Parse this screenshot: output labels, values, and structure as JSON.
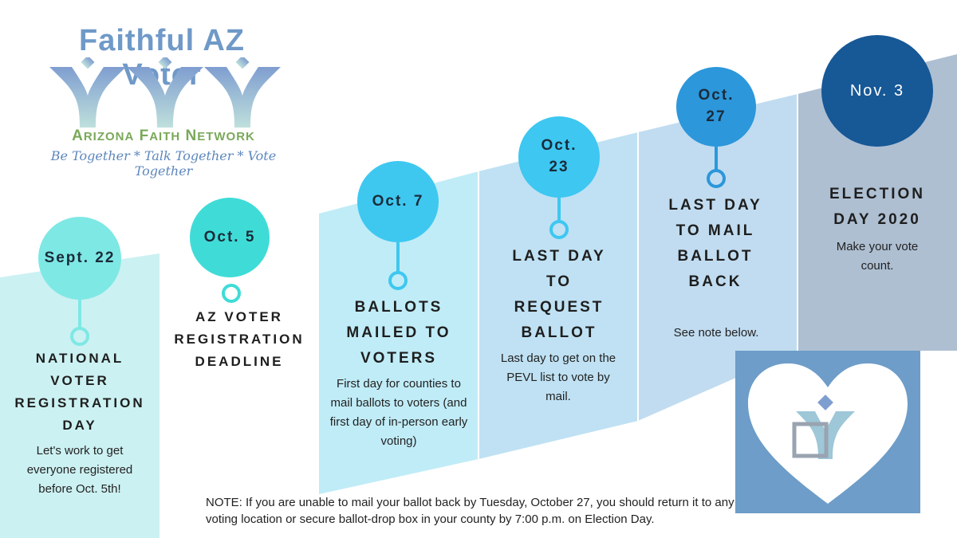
{
  "logo": {
    "title": "Faithful AZ Voter",
    "network_a": "A",
    "network_rizona": "RIZONA",
    "network_f": "F",
    "network_aith": "AITH",
    "network_n": "N",
    "network_etwork": "ETWORK",
    "tagline": "Be Together * Talk Together * Vote Together"
  },
  "milestones": [
    {
      "date": "Sept. 22",
      "title": "NATIONAL VOTER REGISTRATION DAY",
      "description": "Let's work to get everyone registered before Oct. 5th!"
    },
    {
      "date": "Oct. 5",
      "title": "AZ VOTER REGISTRATION DEADLINE",
      "description": ""
    },
    {
      "date": "Oct. 7",
      "title": "BALLOTS MAILED TO VOTERS",
      "description": "First day for counties to mail ballots to voters (and first day of in-person early voting)"
    },
    {
      "date": "Oct. 23",
      "title": "LAST DAY TO REQUEST BALLOT",
      "description": "Last day to get on the PEVL list to vote by mail."
    },
    {
      "date": "Oct. 27",
      "title": "LAST DAY TO MAIL BALLOT BACK",
      "description": "See note below."
    },
    {
      "date": "Nov. 3",
      "title": "ELECTION DAY 2020",
      "description": "Make your vote count."
    }
  ],
  "note": "NOTE: If you are unable to mail your ballot back by Tuesday, October 27, you should return it to any voting location or secure ballot-drop box in your county by 7:00 p.m. on Election Day.",
  "colors": {
    "col1": "#ccf1f2",
    "col2": "#c0ecf7",
    "col3": "#bfe1f3",
    "col4": "#c1dcf0",
    "col5": "#aebfd2",
    "circle1": "#7ee8e4",
    "circle2": "#3fdcd7",
    "circle3": "#3ec8f0",
    "circle4": "#3dc7f1",
    "circle5": "#2c97db",
    "circle6": "#175896",
    "heart_box": "#6d9dc8"
  }
}
